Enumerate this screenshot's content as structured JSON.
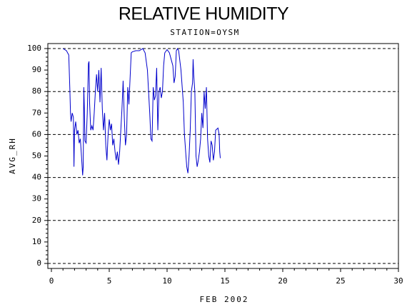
{
  "chart_data": {
    "type": "line",
    "title": "RELATIVE HUMIDITY",
    "subtitle": "STATION=OYSM",
    "x_label": "FEB 2002",
    "y_label": "AVG_RH",
    "xlim": [
      0,
      30
    ],
    "xticks": [
      0,
      5,
      10,
      15,
      20,
      25,
      30
    ],
    "ylim": [
      0,
      100
    ],
    "yticks": [
      0,
      10,
      20,
      30,
      40,
      50,
      60,
      70,
      80,
      90,
      100
    ],
    "grid": true,
    "series": [
      {
        "name": "AVG_RH",
        "color": "#0000cc",
        "x": [
          1.0,
          1.3,
          1.5,
          1.6,
          1.65,
          1.7,
          1.8,
          1.9,
          1.95,
          2.0,
          2.1,
          2.2,
          2.3,
          2.4,
          2.5,
          2.6,
          2.7,
          2.75,
          2.8,
          2.85,
          2.9,
          3.0,
          3.1,
          3.2,
          3.25,
          3.3,
          3.4,
          3.5,
          3.6,
          3.7,
          3.8,
          3.9,
          4.0,
          4.1,
          4.2,
          4.3,
          4.4,
          4.5,
          4.6,
          4.7,
          4.8,
          4.9,
          5.0,
          5.1,
          5.2,
          5.3,
          5.4,
          5.5,
          5.6,
          5.7,
          5.8,
          5.9,
          6.0,
          6.1,
          6.2,
          6.3,
          6.4,
          6.5,
          6.6,
          6.7,
          6.8,
          6.9,
          7.0,
          7.3,
          7.6,
          7.9,
          8.1,
          8.3,
          8.5,
          8.6,
          8.7,
          8.8,
          8.9,
          9.0,
          9.1,
          9.2,
          9.3,
          9.4,
          9.5,
          9.6,
          9.7,
          9.8,
          10.0,
          10.2,
          10.4,
          10.5,
          10.6,
          10.7,
          10.8,
          10.9,
          11.0,
          11.2,
          11.4,
          11.5,
          11.7,
          11.8,
          11.9,
          12.0,
          12.1,
          12.2,
          12.25,
          12.3,
          12.4,
          12.5,
          12.6,
          12.7,
          12.8,
          12.9,
          13.0,
          13.1,
          13.2,
          13.3,
          13.4,
          13.5,
          13.6,
          13.7,
          13.8,
          13.9,
          14.0,
          14.1,
          14.2,
          14.4,
          14.5,
          14.55,
          14.6
        ],
        "values": [
          100,
          99,
          97,
          80,
          70,
          66,
          70,
          68,
          45,
          62,
          66,
          60,
          62,
          56,
          58,
          50,
          41,
          45,
          82,
          72,
          57,
          56,
          70,
          93,
          94,
          75,
          62,
          64,
          62,
          70,
          80,
          88,
          80,
          90,
          75,
          91,
          72,
          62,
          70,
          55,
          48,
          60,
          67,
          62,
          65,
          55,
          58,
          52,
          48,
          52,
          46,
          52,
          62,
          72,
          85,
          68,
          55,
          60,
          82,
          74,
          86,
          98,
          98.5,
          99,
          99,
          100,
          98,
          90,
          70,
          58,
          57,
          82,
          76,
          78,
          91,
          62,
          80,
          82,
          77,
          80,
          92,
          98,
          99.5,
          98,
          94,
          92,
          84,
          87,
          99,
          100,
          99,
          90,
          75,
          60,
          45,
          42,
          50,
          62,
          80,
          84,
          95,
          88,
          80,
          50,
          45,
          48,
          52,
          58,
          70,
          63,
          80,
          72,
          82,
          58,
          50,
          47,
          57,
          55,
          48,
          52,
          62,
          63,
          60,
          52,
          49
        ]
      }
    ]
  }
}
